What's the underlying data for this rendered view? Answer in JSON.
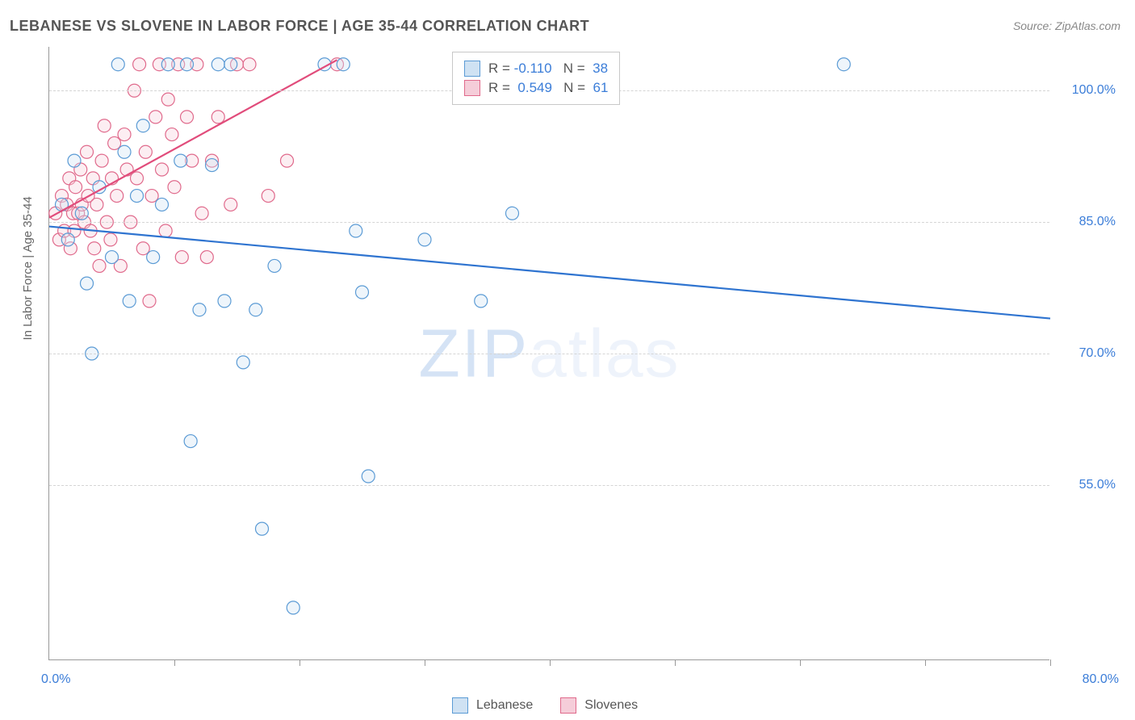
{
  "title": "LEBANESE VS SLOVENE IN LABOR FORCE | AGE 35-44 CORRELATION CHART",
  "source_label": "Source: ZipAtlas.com",
  "y_axis_title": "In Labor Force | Age 35-44",
  "watermark_z": "ZIP",
  "watermark_rest": "atlas",
  "chart": {
    "type": "scatter",
    "x_domain": [
      0,
      80
    ],
    "y_domain": [
      35,
      105
    ],
    "x_origin_label": "0.0%",
    "x_max_label": "80.0%",
    "x_ticks": [
      10,
      20,
      30,
      40,
      50,
      60,
      70,
      80
    ],
    "y_ticks": [
      {
        "v": 55,
        "label": "55.0%"
      },
      {
        "v": 70,
        "label": "70.0%"
      },
      {
        "v": 85,
        "label": "85.0%"
      },
      {
        "v": 100,
        "label": "100.0%"
      }
    ],
    "point_radius": 8,
    "point_stroke_width": 1.2,
    "point_fill_opacity": 0.35,
    "line_width": 2.2,
    "grid_color": "#d5d5d5",
    "axis_color": "#999999",
    "tick_label_color": "#3b7dd8",
    "background_color": "#ffffff",
    "series": [
      {
        "name": "Lebanese",
        "label": "Lebanese",
        "color_stroke": "#5b9bd5",
        "color_fill": "#cfe2f3",
        "line_color": "#2f74d0",
        "r_value": "-0.110",
        "n_value": "38",
        "trend": {
          "x1": 0,
          "y1": 84.5,
          "x2": 80,
          "y2": 74.0
        },
        "points": [
          {
            "x": 1.0,
            "y": 87
          },
          {
            "x": 1.5,
            "y": 83
          },
          {
            "x": 2.0,
            "y": 92
          },
          {
            "x": 2.6,
            "y": 86
          },
          {
            "x": 3.0,
            "y": 78
          },
          {
            "x": 3.4,
            "y": 70
          },
          {
            "x": 4.0,
            "y": 89
          },
          {
            "x": 5.0,
            "y": 81
          },
          {
            "x": 5.5,
            "y": 103
          },
          {
            "x": 6.0,
            "y": 93
          },
          {
            "x": 6.4,
            "y": 76
          },
          {
            "x": 7.0,
            "y": 88
          },
          {
            "x": 7.5,
            "y": 96
          },
          {
            "x": 8.3,
            "y": 81
          },
          {
            "x": 9.0,
            "y": 87
          },
          {
            "x": 9.5,
            "y": 103
          },
          {
            "x": 10.5,
            "y": 92
          },
          {
            "x": 11.0,
            "y": 103
          },
          {
            "x": 11.3,
            "y": 60
          },
          {
            "x": 12.0,
            "y": 75
          },
          {
            "x": 13.0,
            "y": 91.5
          },
          {
            "x": 13.5,
            "y": 103
          },
          {
            "x": 14.0,
            "y": 76
          },
          {
            "x": 14.5,
            "y": 103
          },
          {
            "x": 15.5,
            "y": 69
          },
          {
            "x": 16.5,
            "y": 75
          },
          {
            "x": 17.0,
            "y": 50
          },
          {
            "x": 18.0,
            "y": 80
          },
          {
            "x": 19.5,
            "y": 41
          },
          {
            "x": 22.0,
            "y": 103
          },
          {
            "x": 23.5,
            "y": 103
          },
          {
            "x": 24.5,
            "y": 84
          },
          {
            "x": 25.0,
            "y": 77
          },
          {
            "x": 25.5,
            "y": 56
          },
          {
            "x": 30.0,
            "y": 83
          },
          {
            "x": 34.5,
            "y": 76
          },
          {
            "x": 37.0,
            "y": 86
          },
          {
            "x": 63.5,
            "y": 103
          }
        ]
      },
      {
        "name": "Slovenes",
        "label": "Slovenes",
        "color_stroke": "#e06a8c",
        "color_fill": "#f5cdd9",
        "line_color": "#e14c7b",
        "r_value": "0.549",
        "n_value": "61",
        "trend": {
          "x1": 0,
          "y1": 85.5,
          "x2": 23,
          "y2": 103.5
        },
        "points": [
          {
            "x": 0.5,
            "y": 86
          },
          {
            "x": 0.8,
            "y": 83
          },
          {
            "x": 1.0,
            "y": 88
          },
          {
            "x": 1.2,
            "y": 84
          },
          {
            "x": 1.4,
            "y": 87
          },
          {
            "x": 1.6,
            "y": 90
          },
          {
            "x": 1.7,
            "y": 82
          },
          {
            "x": 1.9,
            "y": 86
          },
          {
            "x": 2.0,
            "y": 84
          },
          {
            "x": 2.1,
            "y": 89
          },
          {
            "x": 2.3,
            "y": 86
          },
          {
            "x": 2.5,
            "y": 91
          },
          {
            "x": 2.6,
            "y": 87
          },
          {
            "x": 2.8,
            "y": 85
          },
          {
            "x": 3.0,
            "y": 93
          },
          {
            "x": 3.1,
            "y": 88
          },
          {
            "x": 3.3,
            "y": 84
          },
          {
            "x": 3.5,
            "y": 90
          },
          {
            "x": 3.6,
            "y": 82
          },
          {
            "x": 3.8,
            "y": 87
          },
          {
            "x": 4.0,
            "y": 80
          },
          {
            "x": 4.2,
            "y": 92
          },
          {
            "x": 4.4,
            "y": 96
          },
          {
            "x": 4.6,
            "y": 85
          },
          {
            "x": 4.9,
            "y": 83
          },
          {
            "x": 5.0,
            "y": 90
          },
          {
            "x": 5.2,
            "y": 94
          },
          {
            "x": 5.4,
            "y": 88
          },
          {
            "x": 5.7,
            "y": 80
          },
          {
            "x": 6.0,
            "y": 95
          },
          {
            "x": 6.2,
            "y": 91
          },
          {
            "x": 6.5,
            "y": 85
          },
          {
            "x": 6.8,
            "y": 100
          },
          {
            "x": 7.0,
            "y": 90
          },
          {
            "x": 7.2,
            "y": 103
          },
          {
            "x": 7.5,
            "y": 82
          },
          {
            "x": 7.7,
            "y": 93
          },
          {
            "x": 8.0,
            "y": 76
          },
          {
            "x": 8.2,
            "y": 88
          },
          {
            "x": 8.5,
            "y": 97
          },
          {
            "x": 8.8,
            "y": 103
          },
          {
            "x": 9.0,
            "y": 91
          },
          {
            "x": 9.3,
            "y": 84
          },
          {
            "x": 9.5,
            "y": 99
          },
          {
            "x": 9.8,
            "y": 95
          },
          {
            "x": 10.0,
            "y": 89
          },
          {
            "x": 10.3,
            "y": 103
          },
          {
            "x": 10.6,
            "y": 81
          },
          {
            "x": 11.0,
            "y": 97
          },
          {
            "x": 11.4,
            "y": 92
          },
          {
            "x": 11.8,
            "y": 103
          },
          {
            "x": 12.2,
            "y": 86
          },
          {
            "x": 12.6,
            "y": 81
          },
          {
            "x": 13.0,
            "y": 92
          },
          {
            "x": 13.5,
            "y": 97
          },
          {
            "x": 14.5,
            "y": 87
          },
          {
            "x": 15.0,
            "y": 103
          },
          {
            "x": 16.0,
            "y": 103
          },
          {
            "x": 17.5,
            "y": 88
          },
          {
            "x": 19.0,
            "y": 92
          },
          {
            "x": 23.0,
            "y": 103
          }
        ]
      }
    ]
  }
}
